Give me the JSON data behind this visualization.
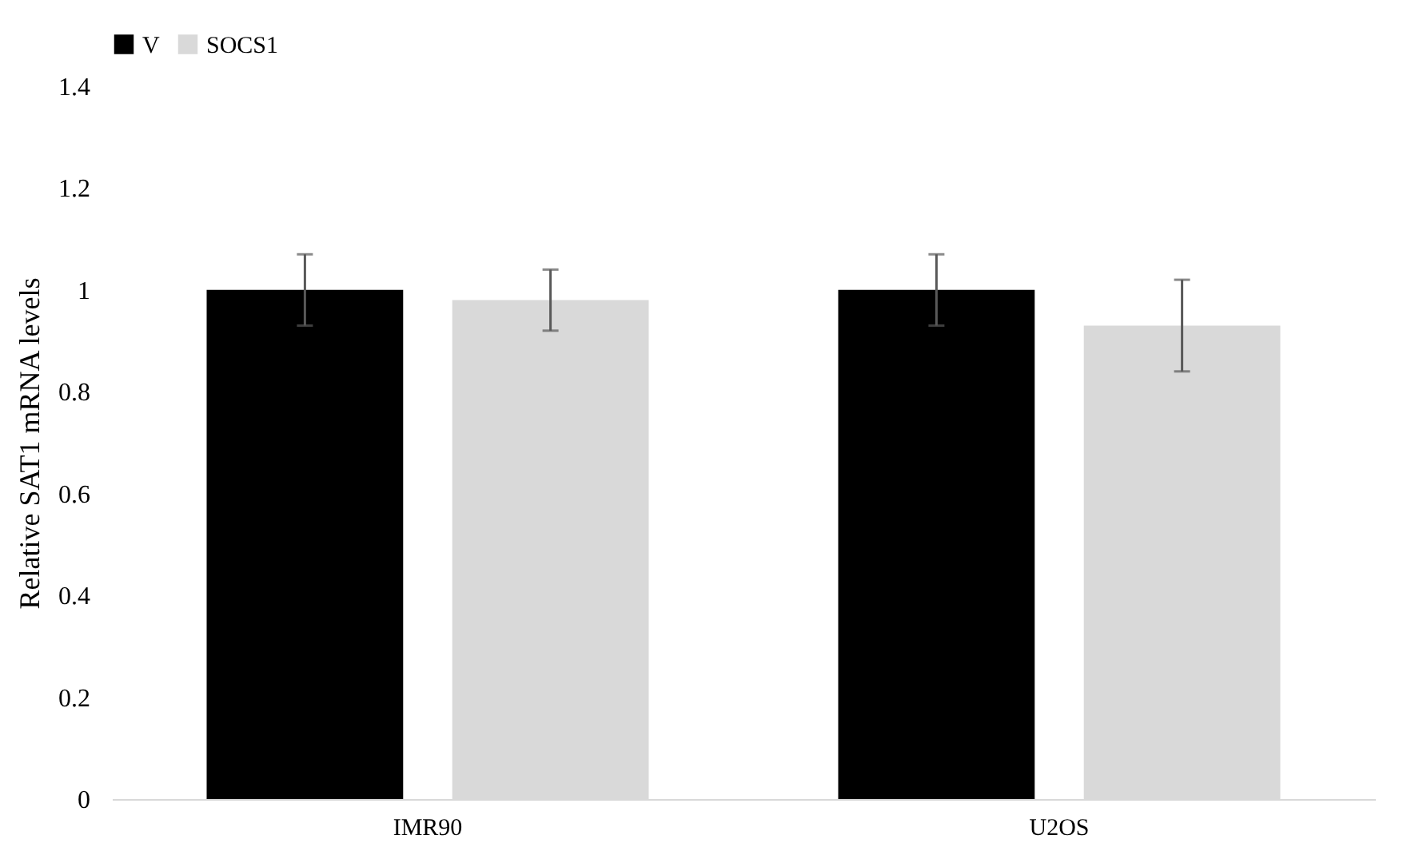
{
  "chart_data": {
    "type": "bar",
    "ylabel": "Relative SAT1 mRNA levels",
    "categories": [
      "IMR90",
      "U2OS"
    ],
    "series": [
      {
        "name": "V",
        "color": "#000000",
        "values": [
          1.0,
          1.0
        ],
        "errors": [
          0.07,
          0.07
        ]
      },
      {
        "name": "SOCS1",
        "color": "#d9d9d9",
        "values": [
          0.98,
          0.93
        ],
        "errors": [
          0.06,
          0.09
        ]
      }
    ],
    "ylim": [
      0,
      1.4
    ],
    "yticks": [
      0,
      0.2,
      0.4,
      0.6,
      0.8,
      1,
      1.2,
      1.4
    ],
    "grid": false,
    "legend": "top"
  }
}
